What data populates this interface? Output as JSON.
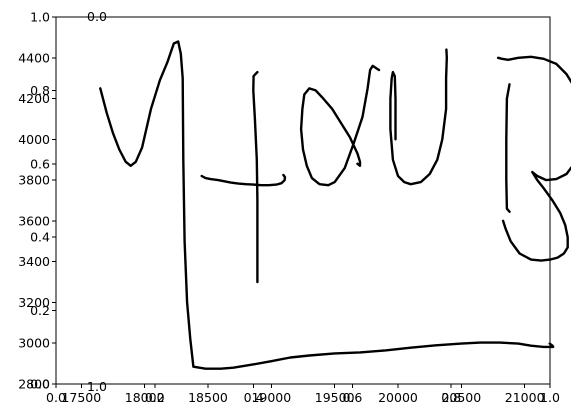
{
  "chart_data": {
    "type": "line",
    "title": "",
    "xlabel": "",
    "ylabel": "",
    "grid": false,
    "legend": "none",
    "line_color": "#000000",
    "axes": [
      {
        "role": "primary",
        "xlim": [
          17300,
          21200
        ],
        "ylim": [
          2800,
          4600
        ],
        "xticks": [
          17500,
          18000,
          18500,
          19000,
          19500,
          20000,
          20500,
          21000
        ],
        "xtick_labels": [
          "17500",
          "18000",
          "18500",
          "19000",
          "19500",
          "20000",
          "20500",
          "21000"
        ],
        "yticks": [
          2800,
          3000,
          3200,
          3400,
          3600,
          3800,
          4000,
          4200,
          4400
        ],
        "ytick_labels": [
          "2800",
          "3000",
          "3200",
          "3400",
          "3600",
          "3800",
          "4000",
          "4200",
          "4400"
        ]
      },
      {
        "role": "overlay",
        "xlim": [
          0,
          1
        ],
        "ylim": [
          0,
          1
        ],
        "xticks": [
          0.0,
          0.2,
          0.4,
          0.6,
          0.8,
          1.0
        ],
        "xtick_labels": [
          "0.0",
          "0.2",
          "0.4",
          "0.6",
          "0.8",
          "1.0"
        ],
        "yticks": [
          0.0,
          0.2,
          0.4,
          0.6,
          0.8,
          1.0
        ],
        "ytick_labels": [
          "0.0",
          "0.2",
          "0.4",
          "0.6",
          "0.8",
          "1.0"
        ]
      },
      {
        "role": "inset",
        "xlim": [
          0,
          1
        ],
        "ylim": [
          0,
          1
        ],
        "xticks": [
          0.0,
          1.0
        ],
        "xtick_labels": [
          "0.0",
          "1.0"
        ],
        "yticks": [
          0.0,
          1.0
        ],
        "ytick_labels": [
          "0.0",
          "1.0"
        ]
      }
    ],
    "series": [
      {
        "points": [
          [
            17650,
            4250
          ],
          [
            17700,
            4130
          ],
          [
            17750,
            4030
          ],
          [
            17800,
            3950
          ],
          [
            17850,
            3890
          ],
          [
            17890,
            3870
          ],
          [
            17930,
            3890
          ],
          [
            17980,
            3960
          ],
          [
            18050,
            4150
          ],
          [
            18120,
            4290
          ],
          [
            18180,
            4380
          ],
          [
            18230,
            4470
          ],
          [
            18265,
            4480
          ],
          [
            18285,
            4420
          ],
          [
            18300,
            4300
          ],
          [
            18305,
            3900
          ],
          [
            18315,
            3500
          ],
          [
            18335,
            3200
          ],
          [
            18360,
            3020
          ],
          [
            18385,
            2885
          ],
          [
            18480,
            2875
          ],
          [
            18600,
            2875
          ],
          [
            18700,
            2880
          ],
          [
            18850,
            2895
          ],
          [
            19000,
            2912
          ],
          [
            19150,
            2930
          ],
          [
            19300,
            2940
          ],
          [
            19500,
            2950
          ],
          [
            19700,
            2955
          ],
          [
            19900,
            2965
          ],
          [
            20100,
            2978
          ],
          [
            20300,
            2990
          ],
          [
            20500,
            2998
          ],
          [
            20650,
            3003
          ],
          [
            20800,
            3003
          ],
          [
            20950,
            2998
          ],
          [
            21050,
            2988
          ],
          [
            21150,
            2982
          ],
          [
            21225,
            2982
          ],
          [
            21220,
            2988
          ],
          [
            21198,
            2998
          ]
        ]
      },
      {
        "points": [
          [
            18450,
            3820
          ],
          [
            18480,
            3810
          ],
          [
            18520,
            3805
          ],
          [
            18580,
            3800
          ],
          [
            18620,
            3795
          ],
          [
            18680,
            3788
          ],
          [
            18740,
            3783
          ],
          [
            18800,
            3780
          ],
          [
            18860,
            3778
          ],
          [
            18920,
            3775
          ],
          [
            18980,
            3775
          ],
          [
            19040,
            3778
          ],
          [
            19080,
            3785
          ],
          [
            19105,
            3800
          ],
          [
            19108,
            3815
          ],
          [
            19095,
            3825
          ]
        ]
      },
      {
        "points": [
          [
            18890,
            4330
          ],
          [
            18860,
            4310
          ],
          [
            18858,
            4240
          ],
          [
            18870,
            4100
          ],
          [
            18885,
            3900
          ],
          [
            18890,
            3700
          ],
          [
            18890,
            3500
          ],
          [
            18890,
            3300
          ]
        ]
      },
      {
        "points": [
          [
            19850,
            4340
          ],
          [
            19800,
            4360
          ],
          [
            19780,
            4340
          ],
          [
            19760,
            4250
          ],
          [
            19720,
            4110
          ],
          [
            19650,
            3980
          ],
          [
            19580,
            3860
          ],
          [
            19500,
            3790
          ],
          [
            19450,
            3775
          ],
          [
            19380,
            3780
          ],
          [
            19320,
            3810
          ],
          [
            19280,
            3870
          ],
          [
            19250,
            3950
          ],
          [
            19235,
            4050
          ],
          [
            19245,
            4150
          ],
          [
            19260,
            4220
          ],
          [
            19300,
            4250
          ],
          [
            19350,
            4240
          ],
          [
            19410,
            4200
          ],
          [
            19480,
            4150
          ],
          [
            19550,
            4080
          ],
          [
            19620,
            4010
          ],
          [
            19680,
            3930
          ],
          [
            19700,
            3890
          ],
          [
            19700,
            3870
          ],
          [
            19680,
            3880
          ]
        ]
      },
      {
        "points": [
          [
            19980,
            4000
          ],
          [
            19980,
            4050
          ],
          [
            19980,
            4200
          ],
          [
            19975,
            4310
          ],
          [
            19960,
            4330
          ],
          [
            19950,
            4300
          ],
          [
            19940,
            4200
          ],
          [
            19940,
            4050
          ],
          [
            19960,
            3900
          ],
          [
            20000,
            3820
          ],
          [
            20050,
            3790
          ],
          [
            20100,
            3780
          ],
          [
            20180,
            3790
          ],
          [
            20250,
            3830
          ],
          [
            20310,
            3900
          ],
          [
            20350,
            4000
          ],
          [
            20380,
            4150
          ],
          [
            20380,
            4300
          ],
          [
            20385,
            4400
          ],
          [
            20382,
            4440
          ]
        ]
      },
      {
        "points": [
          [
            20790,
            4400
          ],
          [
            20820,
            4395
          ],
          [
            20870,
            4390
          ],
          [
            20950,
            4400
          ],
          [
            21050,
            4405
          ],
          [
            21150,
            4395
          ],
          [
            21250,
            4370
          ],
          [
            21330,
            4320
          ],
          [
            21400,
            4250
          ],
          [
            21440,
            4150
          ],
          [
            21450,
            4050
          ],
          [
            21430,
            3950
          ],
          [
            21390,
            3880
          ],
          [
            21330,
            3830
          ],
          [
            21250,
            3805
          ],
          [
            21170,
            3800
          ],
          [
            21100,
            3820
          ],
          [
            21060,
            3840
          ],
          [
            21070,
            3830
          ],
          [
            21100,
            3800
          ],
          [
            21150,
            3760
          ],
          [
            21220,
            3700
          ],
          [
            21280,
            3640
          ],
          [
            21320,
            3580
          ],
          [
            21340,
            3520
          ],
          [
            21340,
            3470
          ],
          [
            21310,
            3440
          ],
          [
            21260,
            3420
          ],
          [
            21200,
            3410
          ],
          [
            21130,
            3405
          ],
          [
            21050,
            3410
          ],
          [
            20960,
            3440
          ],
          [
            20890,
            3500
          ],
          [
            20850,
            3560
          ],
          [
            20830,
            3600
          ]
        ]
      },
      {
        "points": [
          [
            20880,
            4270
          ],
          [
            20860,
            4200
          ],
          [
            20855,
            4000
          ],
          [
            20855,
            3800
          ],
          [
            20860,
            3660
          ],
          [
            20880,
            3645
          ]
        ]
      }
    ]
  }
}
